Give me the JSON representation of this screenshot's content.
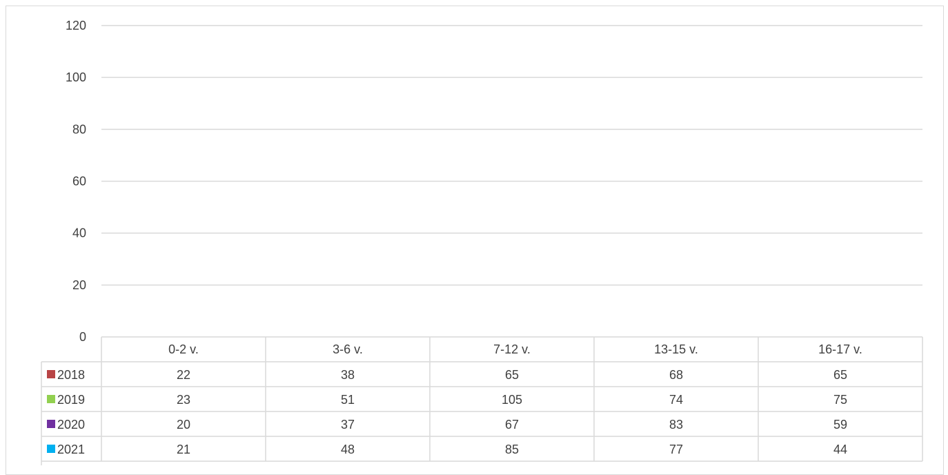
{
  "chart_data": {
    "type": "bar",
    "ylim": [
      0,
      120
    ],
    "yticks": [
      "0",
      "20",
      "40",
      "60",
      "80",
      "100",
      "120"
    ],
    "categories": [
      "0-2 v.",
      "3-6 v.",
      "7-12 v.",
      "13-15 v.",
      "16-17 v."
    ],
    "series": [
      {
        "name": "2018",
        "color": "#b84445",
        "values": [
          22,
          38,
          65,
          68,
          65
        ]
      },
      {
        "name": "2019",
        "color": "#92d050",
        "values": [
          23,
          51,
          105,
          74,
          75
        ]
      },
      {
        "name": "2020",
        "color": "#7030a0",
        "values": [
          20,
          37,
          67,
          83,
          59
        ]
      },
      {
        "name": "2021",
        "color": "#00b0f0",
        "values": [
          21,
          48,
          85,
          77,
          44
        ]
      }
    ],
    "grid": true,
    "legend": "data-table-rows"
  }
}
